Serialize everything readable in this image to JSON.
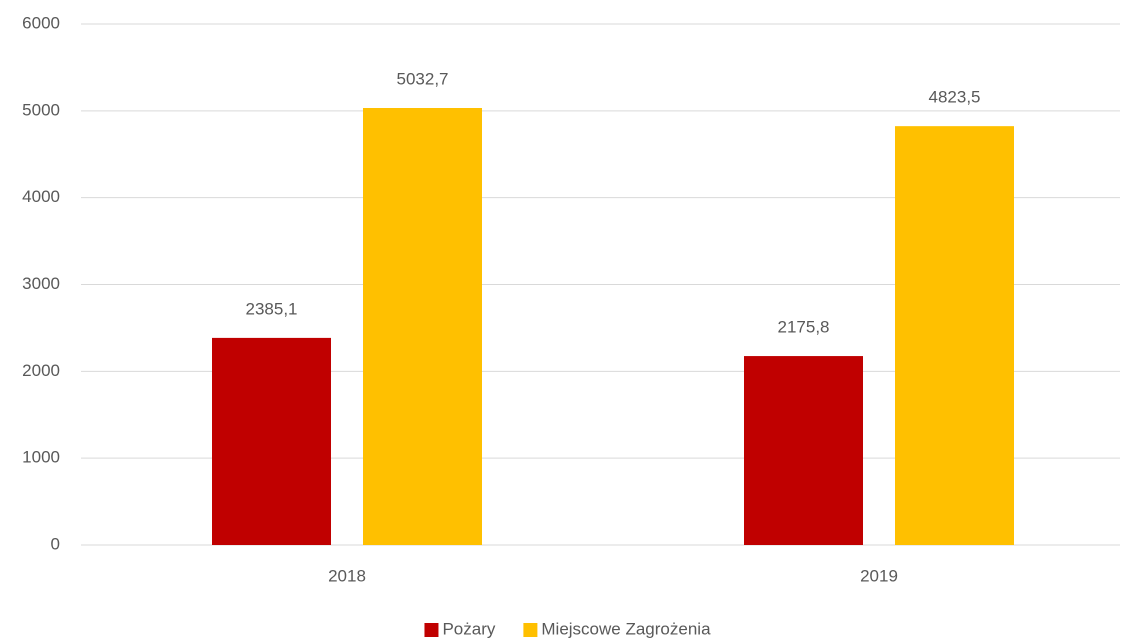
{
  "chart_data": {
    "type": "bar",
    "categories": [
      "2018",
      "2019"
    ],
    "series": [
      {
        "name": "Pożary",
        "color": "#c00000",
        "values": [
          2385.1,
          2175.8
        ],
        "value_labels": [
          "2385,1",
          "2175,8"
        ]
      },
      {
        "name": "Miejscowe Zagrożenia",
        "color": "#ffc000",
        "values": [
          5032.7,
          4823.5
        ],
        "value_labels": [
          "5032,7",
          "4823,5"
        ]
      }
    ],
    "ylim": [
      0,
      6000
    ],
    "yticks": [
      0,
      1000,
      2000,
      3000,
      4000,
      5000,
      6000
    ],
    "grid": true,
    "legend": "bottom"
  }
}
